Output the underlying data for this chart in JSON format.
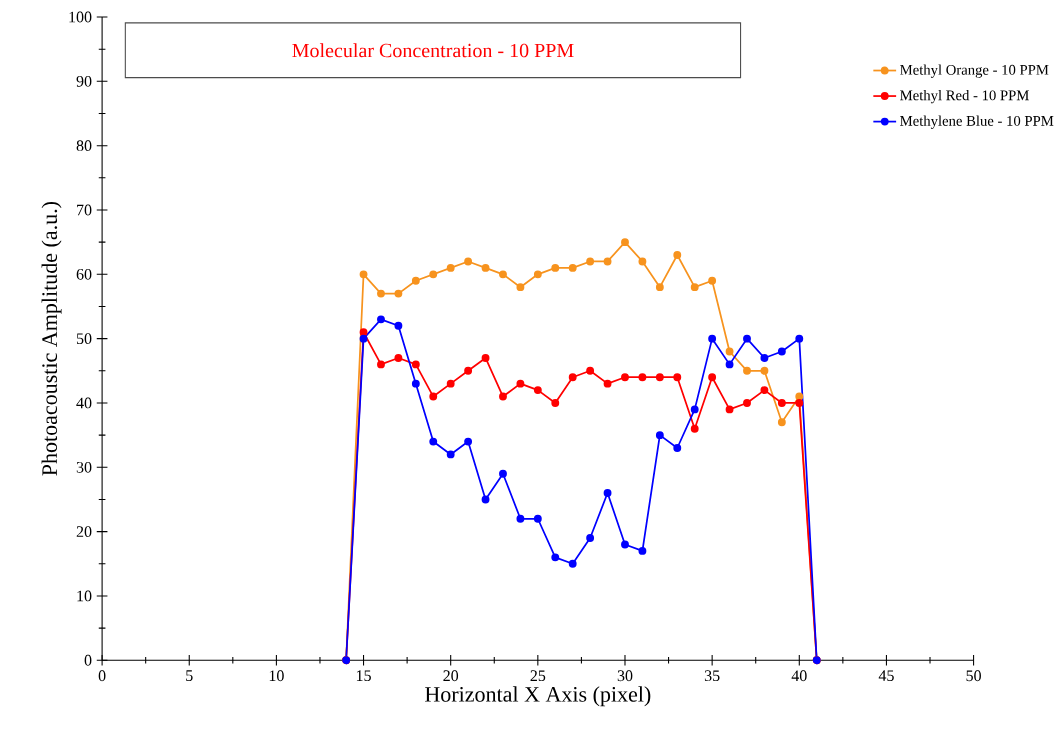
{
  "chart_data": {
    "type": "line",
    "title": "Molecular Concentration - 10 PPM",
    "xlabel": "Horizontal X Axis (pixel)",
    "ylabel": "Photoacoustic Amplitude (a.u.)",
    "x": [
      14,
      15,
      16,
      17,
      18,
      19,
      20,
      21,
      22,
      23,
      24,
      25,
      26,
      27,
      28,
      29,
      30,
      31,
      32,
      33,
      34,
      35,
      36,
      37,
      38,
      39,
      40,
      41
    ],
    "series": [
      {
        "name": "Methyl Orange - 10 PPM",
        "color": "#f7931e",
        "values": [
          0,
          60,
          57,
          57,
          59,
          60,
          61,
          62,
          61,
          60,
          58,
          60,
          61,
          61,
          62,
          62,
          65,
          62,
          58,
          63,
          58,
          59,
          48,
          45,
          45,
          37,
          41,
          0
        ]
      },
      {
        "name": "Methyl Red - 10 PPM",
        "color": "#ff0000",
        "values": [
          0,
          51,
          46,
          47,
          46,
          41,
          43,
          45,
          47,
          41,
          43,
          42,
          40,
          44,
          45,
          43,
          44,
          44,
          44,
          44,
          36,
          44,
          39,
          40,
          42,
          40,
          40,
          0
        ]
      },
      {
        "name": "Methylene Blue - 10 PPM",
        "color": "#0000ff",
        "values": [
          0,
          50,
          53,
          52,
          43,
          34,
          32,
          34,
          25,
          29,
          22,
          22,
          16,
          15,
          19,
          26,
          18,
          17,
          35,
          33,
          39,
          50,
          46,
          50,
          47,
          48,
          50,
          0
        ]
      }
    ],
    "xlim": [
      0,
      50
    ],
    "ylim": [
      0,
      100
    ],
    "xticks": [
      0,
      5,
      10,
      15,
      20,
      25,
      30,
      35,
      40,
      45,
      50
    ],
    "yticks": [
      0,
      10,
      20,
      30,
      40,
      50,
      60,
      70,
      80,
      90,
      100
    ],
    "grid": false,
    "legend": "top right",
    "marker": "circle",
    "line_style": "solid"
  }
}
